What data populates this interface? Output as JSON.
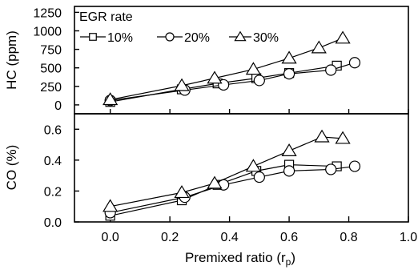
{
  "chart_data": {
    "type": "line",
    "xlabel_main": "Premixed ratio (r",
    "xlabel_sub": "p",
    "xlabel_close": ")",
    "x_ticks": [
      "0.0",
      "0.2",
      "0.4",
      "0.6",
      "0.8",
      "1.0"
    ],
    "xlim": [
      -0.12,
      1.0
    ],
    "legend": {
      "title": "EGR rate",
      "placement": "top-left",
      "entries": [
        {
          "label": "10%",
          "marker": "square"
        },
        {
          "label": "20%",
          "marker": "circle"
        },
        {
          "label": "30%",
          "marker": "triangle"
        }
      ]
    },
    "panels": [
      {
        "id": "hc",
        "ylabel": "HC (ppm)",
        "ylim": [
          -120,
          1330
        ],
        "y_ticks": [
          "0",
          "250",
          "500",
          "750",
          "1000",
          "1250"
        ],
        "y_tick_values": [
          0,
          250,
          500,
          750,
          1000,
          1250
        ],
        "series": [
          {
            "name": "10%",
            "marker": "square",
            "x": [
              0.0,
              0.24,
              0.36,
              0.49,
              0.6,
              0.76
            ],
            "y": [
              40,
              210,
              290,
              360,
              430,
              530
            ]
          },
          {
            "name": "20%",
            "marker": "circle",
            "x": [
              0.0,
              0.25,
              0.38,
              0.5,
              0.6,
              0.74,
              0.82
            ],
            "y": [
              60,
              200,
              270,
              330,
              420,
              470,
              570
            ]
          },
          {
            "name": "30%",
            "marker": "triangle",
            "x": [
              0.0,
              0.24,
              0.35,
              0.48,
              0.6,
              0.7,
              0.78
            ],
            "y": [
              70,
              260,
              360,
              480,
              630,
              770,
              900
            ]
          }
        ]
      },
      {
        "id": "co",
        "ylabel": "CO (%)",
        "ylim": [
          0.0,
          0.7
        ],
        "y_ticks": [
          "0.0",
          "0.2",
          "0.4",
          "0.6"
        ],
        "y_tick_values": [
          0.0,
          0.2,
          0.4,
          0.6
        ],
        "series": [
          {
            "name": "10%",
            "marker": "square",
            "x": [
              0.0,
              0.24,
              0.36,
              0.49,
              0.6,
              0.76
            ],
            "y": [
              0.04,
              0.14,
              0.24,
              0.33,
              0.37,
              0.36
            ]
          },
          {
            "name": "20%",
            "marker": "circle",
            "x": [
              0.0,
              0.25,
              0.38,
              0.5,
              0.6,
              0.74,
              0.82
            ],
            "y": [
              0.06,
              0.16,
              0.24,
              0.29,
              0.33,
              0.34,
              0.36
            ]
          },
          {
            "name": "30%",
            "marker": "triangle",
            "x": [
              0.0,
              0.24,
              0.35,
              0.48,
              0.6,
              0.71,
              0.78
            ],
            "y": [
              0.1,
              0.19,
              0.25,
              0.36,
              0.46,
              0.55,
              0.54
            ]
          }
        ]
      }
    ]
  }
}
